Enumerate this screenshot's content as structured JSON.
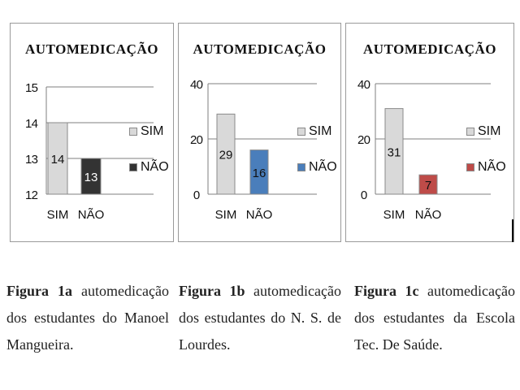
{
  "chart_data": [
    {
      "type": "bar",
      "title": "AUTOMEDICAÇÃO",
      "categories": [
        "SIM",
        "NÃO"
      ],
      "values": [
        14,
        13
      ],
      "colors": [
        "#d9d9d9",
        "#333333"
      ],
      "ylim": [
        12,
        15
      ],
      "yticks": [
        12,
        13,
        14,
        15
      ],
      "legend": [
        "SIM",
        "NÃO"
      ],
      "legend_position": "right",
      "grid": true
    },
    {
      "type": "bar",
      "title": "AUTOMEDICAÇÃO",
      "categories": [
        "SIM",
        "NÃO"
      ],
      "values": [
        29,
        16
      ],
      "colors": [
        "#d9d9d9",
        "#4a7ebb"
      ],
      "ylim": [
        0,
        40
      ],
      "yticks": [
        0,
        20,
        40
      ],
      "legend": [
        "SIM",
        "NÃO"
      ],
      "legend_position": "right",
      "grid": true
    },
    {
      "type": "bar",
      "title": "AUTOMEDICAÇÃO",
      "categories": [
        "SIM",
        "NÃO"
      ],
      "values": [
        31,
        7
      ],
      "colors": [
        "#d9d9d9",
        "#be4b48"
      ],
      "ylim": [
        0,
        40
      ],
      "yticks": [
        0,
        20,
        40
      ],
      "legend": [
        "SIM",
        "NÃO"
      ],
      "legend_position": "right",
      "grid": true
    }
  ],
  "captions": [
    {
      "label": "Figura 1a",
      "text": " automedicação dos estudantes do Manoel Mangueira."
    },
    {
      "label": "Figura 1b",
      "text": " automedicação dos estudantes do N. S. de Lourdes."
    },
    {
      "label": "Figura 1c",
      "text": " automedicação dos estudantes da Escola Tec. De Saúde."
    }
  ]
}
